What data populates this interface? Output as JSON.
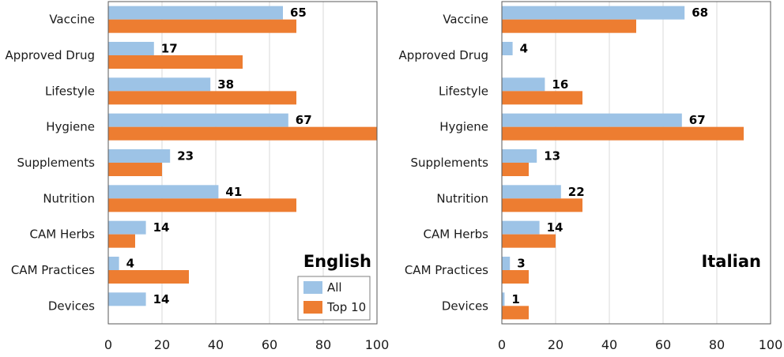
{
  "chart_data": [
    {
      "type": "bar",
      "orientation": "horizontal",
      "title": "English",
      "categories": [
        "Vaccine",
        "Approved Drug",
        "Lifestyle",
        "Hygiene",
        "Supplements",
        "Nutrition",
        "CAM Herbs",
        "CAM Practices",
        "Devices"
      ],
      "series": [
        {
          "name": "All",
          "values": [
            65,
            17,
            38,
            67,
            23,
            41,
            14,
            4,
            14
          ],
          "color": "#9dc3e6",
          "labeled": true
        },
        {
          "name": "Top 10",
          "values": [
            70,
            50,
            70,
            100,
            20,
            70,
            10,
            30,
            0
          ],
          "color": "#ed7d31",
          "labeled": false
        }
      ],
      "xlim": [
        0,
        100
      ],
      "xticks": [
        0,
        20,
        40,
        60,
        80,
        100
      ],
      "grid": true,
      "legend": "bottom-right"
    },
    {
      "type": "bar",
      "orientation": "horizontal",
      "title": "Italian",
      "categories": [
        "Vaccine",
        "Approved Drug",
        "Lifestyle",
        "Hygiene",
        "Supplements",
        "Nutrition",
        "CAM Herbs",
        "CAM Practices",
        "Devices"
      ],
      "series": [
        {
          "name": "All",
          "values": [
            68,
            4,
            16,
            67,
            13,
            22,
            14,
            3,
            1
          ],
          "color": "#9dc3e6",
          "labeled": true
        },
        {
          "name": "Top 10",
          "values": [
            50,
            0,
            30,
            90,
            10,
            30,
            20,
            10,
            10
          ],
          "color": "#ed7d31",
          "labeled": false
        }
      ],
      "xlim": [
        0,
        100
      ],
      "xticks": [
        0,
        20,
        40,
        60,
        80,
        100
      ],
      "grid": true,
      "legend": "none"
    }
  ]
}
